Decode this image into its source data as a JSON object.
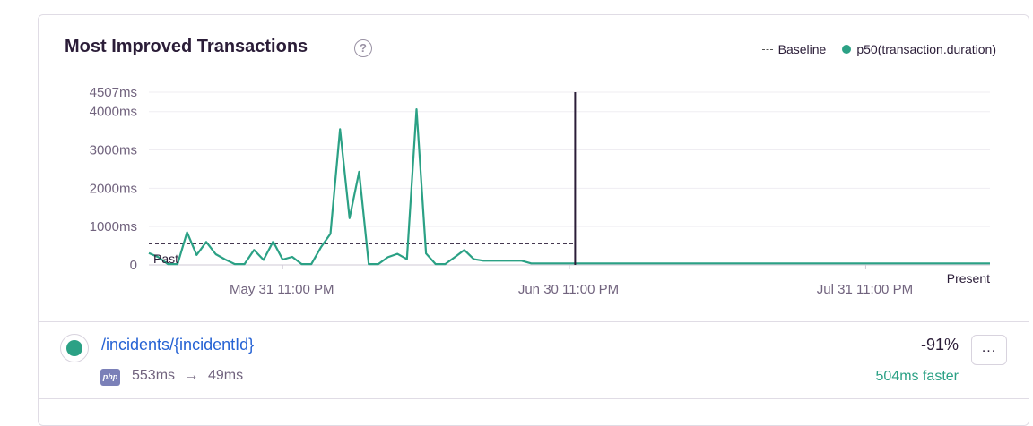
{
  "header": {
    "title": "Most Improved Transactions",
    "help_glyph": "?"
  },
  "legend": {
    "baseline_label": "Baseline",
    "series_label": "p50(transaction.duration)"
  },
  "colors": {
    "series": "#2ba185",
    "baseline": "#2b1d38",
    "breakpoint": "#2b1d38",
    "link": "#2562d4",
    "faster": "#2ba185"
  },
  "chart_data": {
    "type": "line",
    "ylim": [
      0,
      4507
    ],
    "y_ticks": [
      {
        "value": 0,
        "label": "0"
      },
      {
        "value": 1000,
        "label": "1000ms"
      },
      {
        "value": 2000,
        "label": "2000ms"
      },
      {
        "value": 3000,
        "label": "3000ms"
      },
      {
        "value": 4000,
        "label": "4000ms"
      },
      {
        "value": 4507,
        "label": "4507ms"
      }
    ],
    "xlim": [
      0,
      88
    ],
    "x_ticks": [
      {
        "value": 14,
        "label": "May 31 11:00 PM"
      },
      {
        "value": 44,
        "label": "Jun 30 11:00 PM"
      },
      {
        "value": 75,
        "label": "Jul 31 11:00 PM"
      }
    ],
    "region_labels": {
      "left": "Past",
      "right": "Present"
    },
    "breakpoint_x": 44.6,
    "baseline": {
      "value": 553,
      "x_end": 44.6
    },
    "series": [
      {
        "name": "p50(transaction.duration)",
        "points": [
          [
            0,
            310
          ],
          [
            1,
            200
          ],
          [
            2,
            20
          ],
          [
            3,
            20
          ],
          [
            4,
            850
          ],
          [
            5,
            260
          ],
          [
            6,
            600
          ],
          [
            7,
            280
          ],
          [
            8,
            140
          ],
          [
            9,
            20
          ],
          [
            10,
            20
          ],
          [
            11,
            390
          ],
          [
            12,
            130
          ],
          [
            13,
            610
          ],
          [
            14,
            140
          ],
          [
            15,
            210
          ],
          [
            16,
            20
          ],
          [
            17,
            20
          ],
          [
            18,
            460
          ],
          [
            19,
            810
          ],
          [
            20,
            3540
          ],
          [
            21,
            1220
          ],
          [
            22,
            2430
          ],
          [
            23,
            20
          ],
          [
            24,
            20
          ],
          [
            25,
            200
          ],
          [
            26,
            290
          ],
          [
            27,
            150
          ],
          [
            28,
            4060
          ],
          [
            29,
            300
          ],
          [
            30,
            20
          ],
          [
            31,
            20
          ],
          [
            32,
            200
          ],
          [
            33,
            390
          ],
          [
            34,
            150
          ],
          [
            35,
            110
          ],
          [
            36,
            110
          ],
          [
            37,
            110
          ],
          [
            38,
            110
          ],
          [
            39,
            110
          ],
          [
            40,
            40
          ],
          [
            41,
            40
          ],
          [
            42,
            40
          ],
          [
            43,
            40
          ],
          [
            44,
            40
          ],
          [
            45,
            40
          ],
          [
            50,
            40
          ],
          [
            55,
            40
          ],
          [
            60,
            40
          ],
          [
            65,
            40
          ],
          [
            70,
            40
          ],
          [
            75,
            40
          ],
          [
            80,
            40
          ],
          [
            85,
            40
          ],
          [
            88,
            40
          ]
        ]
      }
    ]
  },
  "transaction": {
    "name": "/incidents/{incidentId}",
    "platform": "php",
    "before": "553ms",
    "arrow": "→",
    "after": "49ms",
    "percent_change": "-91%",
    "delta_text": "504ms faster",
    "menu_label": "..."
  }
}
